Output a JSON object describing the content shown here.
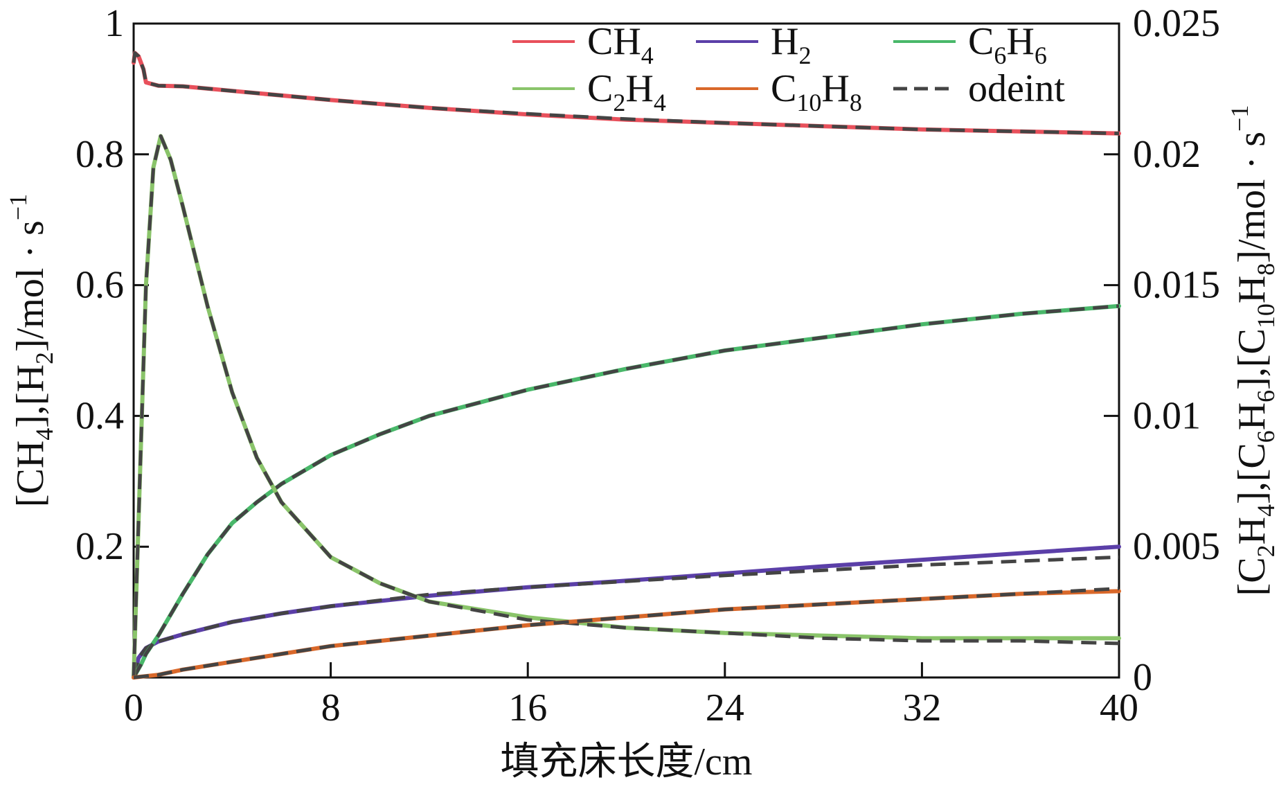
{
  "chart_data": {
    "type": "line",
    "x_label": "填充床长度/cm",
    "y_left_label": "[CH4],[H2]/mol · s−1",
    "y_right_label": "[C2H4],[C6H6],[C10H8]/mol · s−1",
    "x_range": [
      0,
      40
    ],
    "y_left_range": [
      0,
      1
    ],
    "y_right_range": [
      0,
      0.025
    ],
    "x_ticks": [
      "0",
      "8",
      "16",
      "24",
      "32",
      "40"
    ],
    "y_left_ticks": [
      "0.2",
      "0.4",
      "0.6",
      "0.8",
      "1"
    ],
    "y_right_ticks": [
      "0",
      "0.005",
      "0.01",
      "0.015",
      "0.02",
      "0.025"
    ],
    "legend": {
      "position": "top-right",
      "entries": [
        {
          "base": "CH",
          "sub": "4",
          "color": "#e8505b"
        },
        {
          "base": "H",
          "sub": "2",
          "color": "#5b3fa8"
        },
        {
          "base": "C",
          "sub": "6",
          "base2": "H",
          "sub2": "6",
          "color": "#49b86a"
        },
        {
          "base": "C",
          "sub": "2",
          "base2": "H",
          "sub2": "4",
          "color": "#8ac46a"
        },
        {
          "base": "C",
          "sub": "10",
          "base2": "H",
          "sub2": "8",
          "color": "#d9682a"
        },
        {
          "base": "odeint",
          "color": "#444444",
          "dashed": true
        }
      ]
    },
    "series": [
      {
        "name": "CH4",
        "axis": "left",
        "color": "#e8505b",
        "x": [
          0,
          0.05,
          0.2,
          0.4,
          0.5,
          1,
          2,
          4,
          8,
          12,
          16,
          20,
          24,
          28,
          32,
          36,
          40
        ],
        "y": [
          0.94,
          0.955,
          0.95,
          0.93,
          0.91,
          0.905,
          0.904,
          0.897,
          0.883,
          0.871,
          0.861,
          0.853,
          0.848,
          0.843,
          0.838,
          0.835,
          0.832
        ]
      },
      {
        "name": "odeint-CH4",
        "axis": "left",
        "color": "#444444",
        "dashed": true,
        "x": [
          0,
          0.05,
          0.2,
          0.4,
          0.5,
          1,
          2,
          4,
          8,
          12,
          16,
          20,
          24,
          28,
          32,
          36,
          40
        ],
        "y": [
          0.94,
          0.955,
          0.95,
          0.93,
          0.91,
          0.905,
          0.904,
          0.897,
          0.883,
          0.871,
          0.862,
          0.854,
          0.848,
          0.843,
          0.838,
          0.835,
          0.832
        ]
      },
      {
        "name": "H2",
        "axis": "left",
        "color": "#5b3fa8",
        "x": [
          0,
          0.2,
          0.5,
          1,
          2,
          4,
          6,
          8,
          12,
          16,
          20,
          24,
          28,
          32,
          36,
          40
        ],
        "y": [
          0.0,
          0.03,
          0.045,
          0.055,
          0.066,
          0.085,
          0.098,
          0.109,
          0.125,
          0.138,
          0.148,
          0.159,
          0.17,
          0.18,
          0.19,
          0.2
        ]
      },
      {
        "name": "odeint-H2",
        "axis": "left",
        "color": "#444444",
        "dashed": true,
        "x": [
          0,
          0.2,
          0.5,
          1,
          2,
          4,
          6,
          8,
          12,
          16,
          20,
          24,
          28,
          32,
          36,
          40
        ],
        "y": [
          0.0,
          0.03,
          0.045,
          0.055,
          0.066,
          0.085,
          0.098,
          0.109,
          0.127,
          0.138,
          0.147,
          0.156,
          0.164,
          0.172,
          0.178,
          0.184
        ]
      },
      {
        "name": "C6H6",
        "axis": "right",
        "color": "#49b86a",
        "x": [
          0,
          0.3,
          0.5,
          1,
          2,
          3,
          4,
          5,
          6,
          8,
          10,
          12,
          16,
          20,
          24,
          28,
          32,
          36,
          40
        ],
        "y": [
          0.0,
          0.0005,
          0.0009,
          0.0016,
          0.0032,
          0.0047,
          0.0059,
          0.0067,
          0.0074,
          0.0085,
          0.0093,
          0.01,
          0.011,
          0.0118,
          0.0125,
          0.013,
          0.0135,
          0.0139,
          0.0142
        ]
      },
      {
        "name": "odeint-C6H6",
        "axis": "right",
        "color": "#444444",
        "dashed": true,
        "x": [
          0,
          0.3,
          0.5,
          1,
          2,
          3,
          4,
          5,
          6,
          8,
          10,
          12,
          16,
          20,
          24,
          28,
          32,
          36,
          40
        ],
        "y": [
          0.0,
          0.0005,
          0.0009,
          0.0016,
          0.0032,
          0.0047,
          0.0059,
          0.0067,
          0.0074,
          0.0085,
          0.0093,
          0.01,
          0.011,
          0.0118,
          0.0125,
          0.013,
          0.0135,
          0.0139,
          0.0142
        ]
      },
      {
        "name": "C2H4",
        "axis": "right",
        "color": "#8ac46a",
        "x": [
          0,
          0.2,
          0.5,
          0.8,
          1.1,
          1.5,
          2,
          3,
          4,
          5,
          6,
          8,
          10,
          12,
          16,
          20,
          24,
          28,
          32,
          36,
          40
        ],
        "y": [
          0.0,
          0.006,
          0.015,
          0.0195,
          0.0207,
          0.0198,
          0.018,
          0.0142,
          0.0109,
          0.0084,
          0.0067,
          0.0046,
          0.0036,
          0.0029,
          0.0023,
          0.0019,
          0.0017,
          0.0016,
          0.0015,
          0.0015,
          0.0015
        ]
      },
      {
        "name": "odeint-C2H4",
        "axis": "right",
        "color": "#444444",
        "dashed": true,
        "x": [
          0,
          0.2,
          0.5,
          0.8,
          1.1,
          1.5,
          2,
          3,
          4,
          5,
          6,
          8,
          10,
          12,
          16,
          20,
          24,
          28,
          32,
          36,
          40
        ],
        "y": [
          0.0,
          0.006,
          0.015,
          0.0195,
          0.0207,
          0.0198,
          0.018,
          0.0142,
          0.0109,
          0.0084,
          0.0067,
          0.0046,
          0.0036,
          0.0029,
          0.0022,
          0.0019,
          0.0017,
          0.0015,
          0.0014,
          0.0014,
          0.0013
        ]
      },
      {
        "name": "C10H8",
        "axis": "right",
        "color": "#d9682a",
        "x": [
          0,
          1,
          2,
          4,
          8,
          12,
          16,
          20,
          24,
          28,
          32,
          36,
          40
        ],
        "y": [
          0.0,
          0.0001,
          0.0003,
          0.0006,
          0.0012,
          0.0016,
          0.002,
          0.0023,
          0.0026,
          0.0028,
          0.003,
          0.0032,
          0.0033
        ]
      },
      {
        "name": "odeint-C10H8",
        "axis": "right",
        "color": "#444444",
        "dashed": true,
        "x": [
          0,
          1,
          2,
          4,
          8,
          12,
          16,
          20,
          24,
          28,
          32,
          36,
          40
        ],
        "y": [
          0.0,
          0.0001,
          0.0003,
          0.0006,
          0.0012,
          0.0016,
          0.002,
          0.0023,
          0.0026,
          0.0028,
          0.003,
          0.0032,
          0.0034
        ]
      }
    ]
  }
}
